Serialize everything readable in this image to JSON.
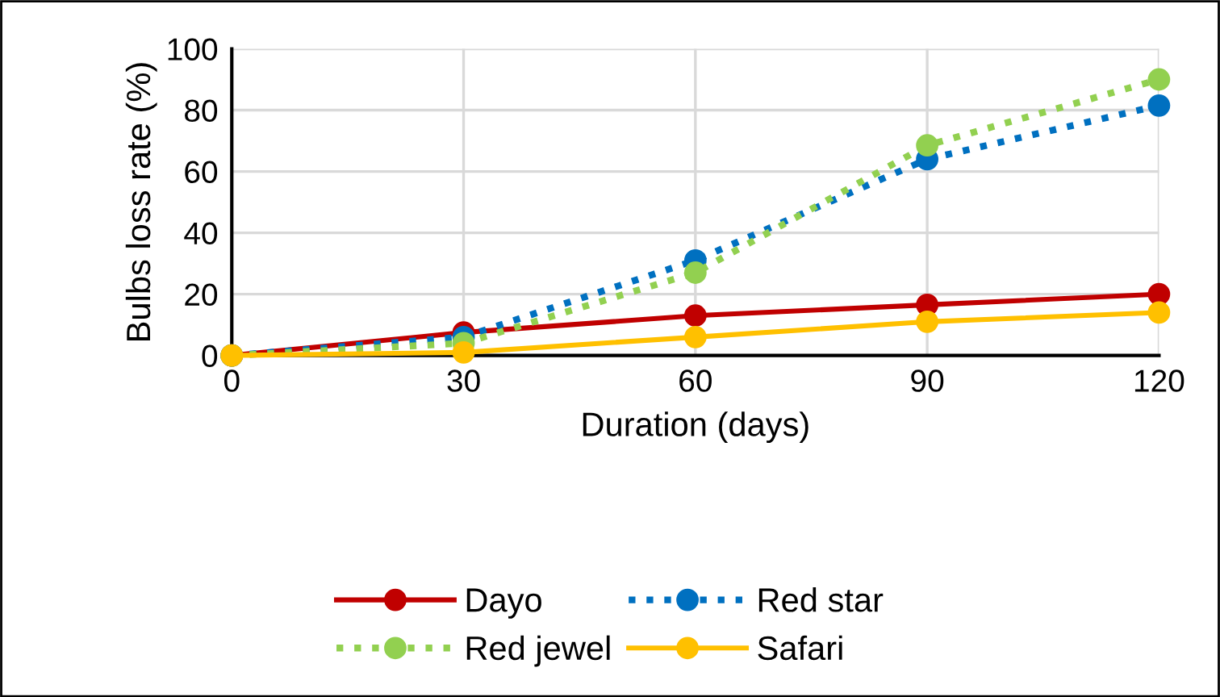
{
  "chart_data": {
    "type": "line",
    "xlabel": "Duration (days)",
    "ylabel": "Bulbs loss rate (%)",
    "x": [
      0,
      30,
      60,
      90,
      120
    ],
    "xlim": [
      0,
      120
    ],
    "xticks": [
      0,
      30,
      60,
      90,
      120
    ],
    "ylim": [
      0,
      100
    ],
    "yticks": [
      0,
      20,
      40,
      60,
      80,
      100
    ],
    "grid": true,
    "legend": "bottom",
    "marker": "circle",
    "series": [
      {
        "name": "Dayo",
        "color": "#c00000",
        "line_style": "solid",
        "values": [
          0,
          7.5,
          13,
          16.5,
          20
        ]
      },
      {
        "name": "Red star",
        "color": "#0070c0",
        "line_style": "dotted",
        "values": [
          0,
          6,
          31,
          64,
          81.5
        ]
      },
      {
        "name": "Red jewel",
        "color": "#92d050",
        "line_style": "dotted",
        "values": [
          0,
          4,
          27,
          68.5,
          90
        ]
      },
      {
        "name": "Safari",
        "color": "#ffc000",
        "line_style": "solid",
        "values": [
          0,
          1,
          6,
          11,
          14
        ]
      }
    ]
  }
}
